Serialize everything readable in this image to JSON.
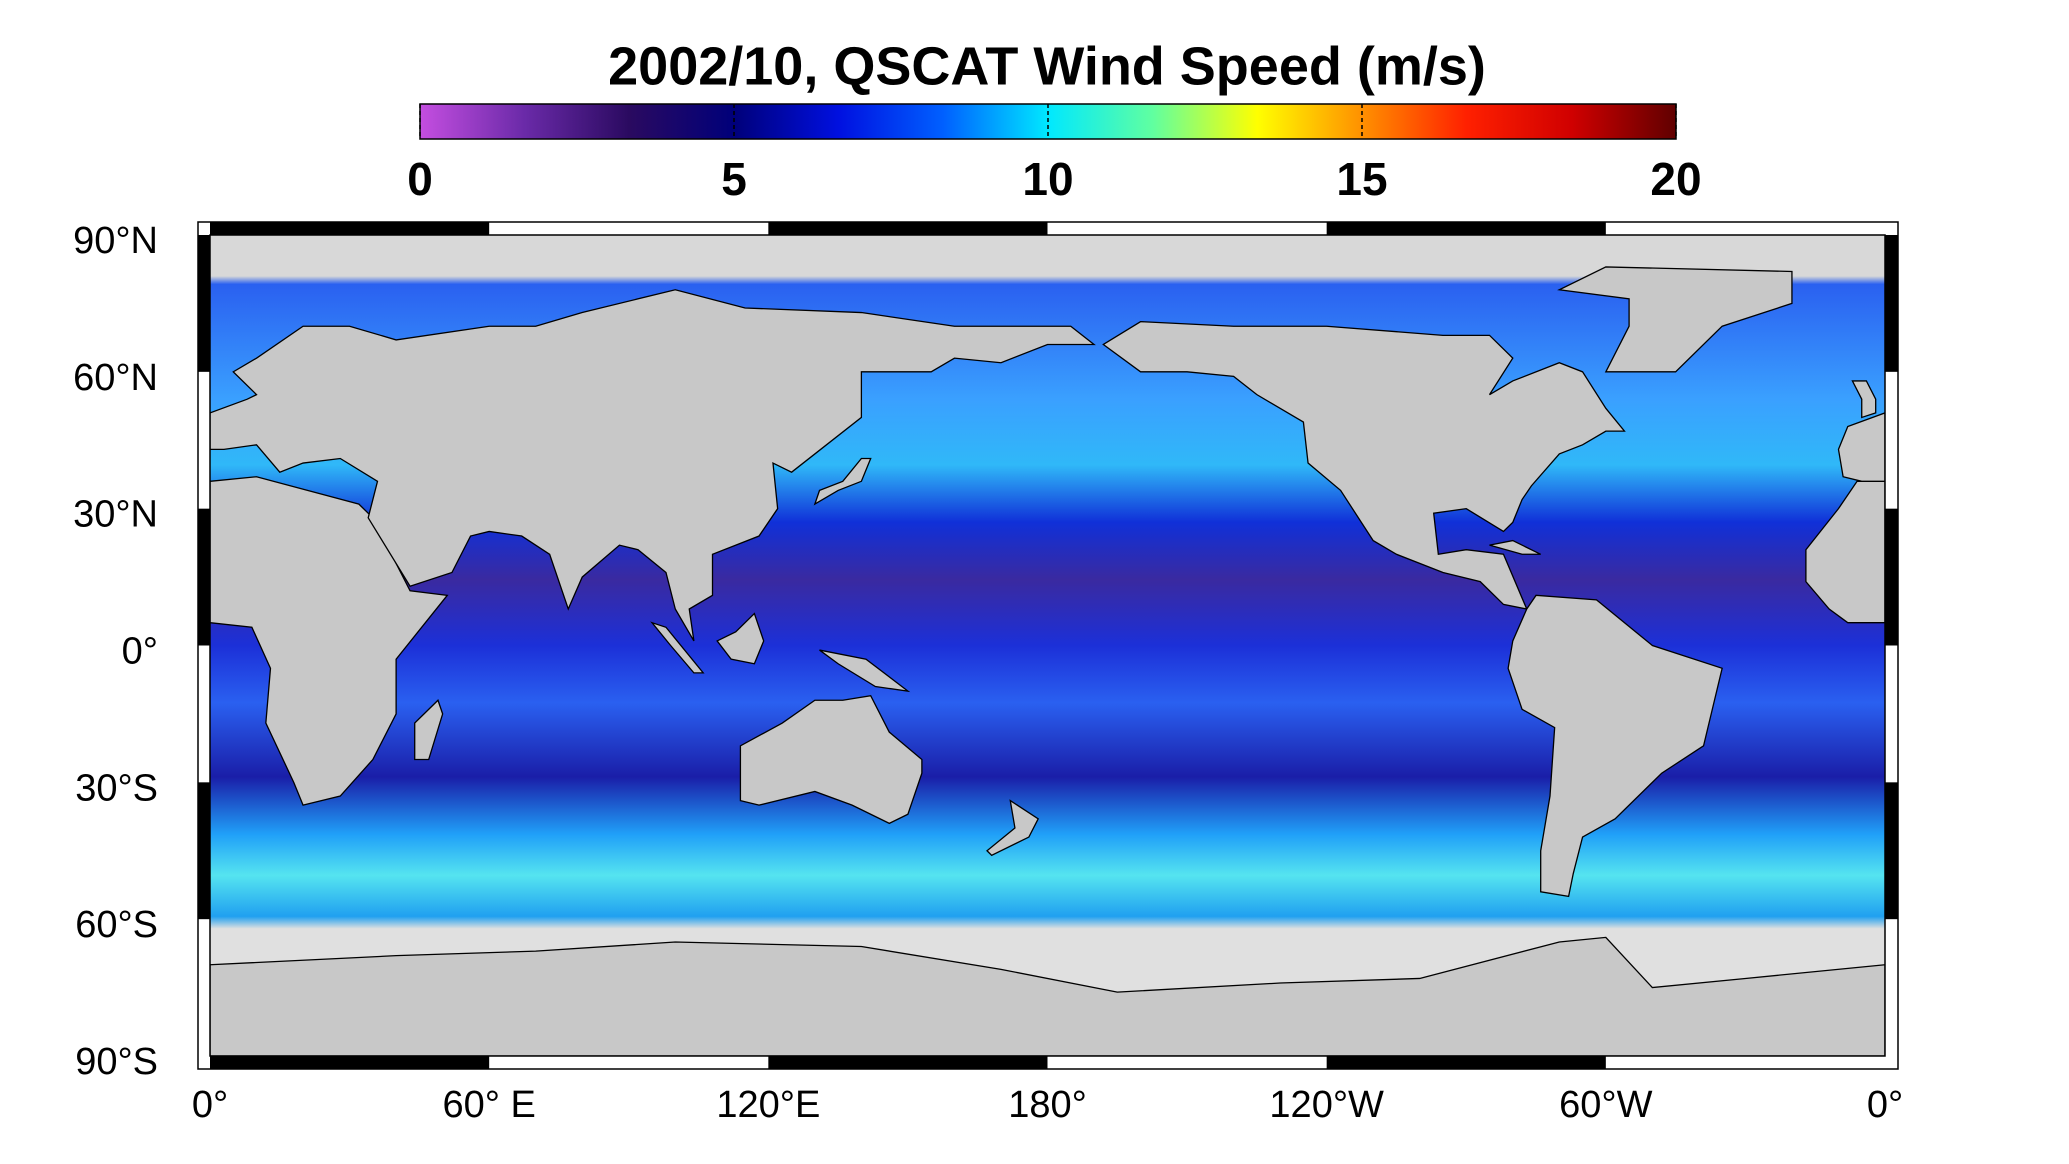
{
  "map": {
    "title": "2002/10,  QSCAT Wind Speed (m/s)",
    "colorbar": {
      "lim": [
        0,
        20
      ],
      "ticks": [
        0,
        5,
        10,
        15,
        20
      ],
      "colors": [
        "#c44ee0",
        "#6a2aa8",
        "#2a0a60",
        "#00007a",
        "#0010e0",
        "#0060ff",
        "#00e8ff",
        "#60ffa0",
        "#ffff00",
        "#ff9000",
        "#ff2000",
        "#d00000",
        "#600000"
      ]
    },
    "lat_labels": [
      "90°N",
      "60°N",
      "30°N",
      "0°",
      "30°S",
      "60°S",
      "90°S"
    ],
    "lon_labels": [
      "0°",
      "60° E",
      "120°E",
      "180°",
      "120°W",
      "60°W",
      "0°"
    ]
  }
}
